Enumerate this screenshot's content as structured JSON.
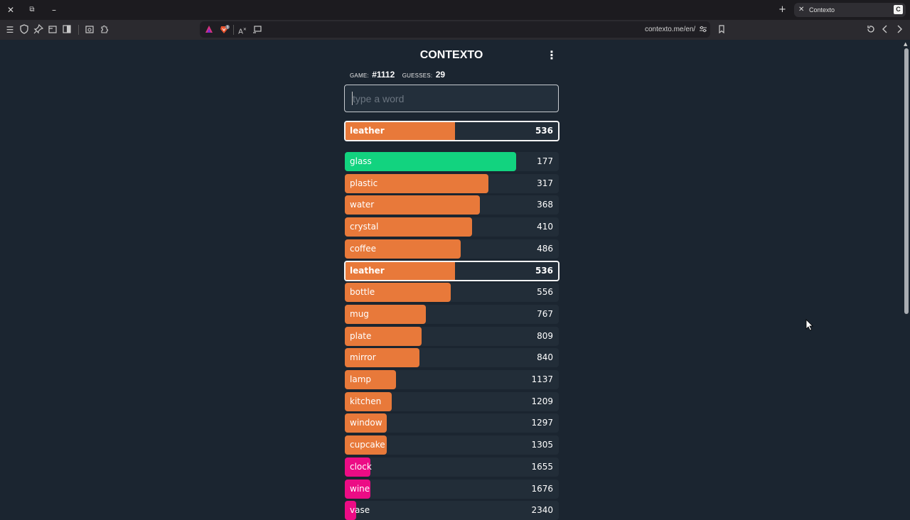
{
  "browser": {
    "tab_title": "Contexto",
    "tab_favicon_letter": "C",
    "url": "contexto.me/en/",
    "shields_badge": "3",
    "icons": {
      "close": "close-icon",
      "restore": "restore-icon",
      "minimize": "minimize-icon",
      "new_tab": "plus-icon",
      "menu": "hamburger-icon",
      "shield": "shield-icon",
      "pin": "pin-icon",
      "tabs": "tabs-icon",
      "sidebar": "sidebar-icon",
      "screenshot": "screenshot-icon",
      "extensions": "puzzle-icon",
      "rewards": "triangle-icon",
      "brave_shields": "lion-icon",
      "translate": "translate-icon",
      "cast": "cast-icon",
      "site_settings": "sliders-icon",
      "bookmark": "bookmark-icon",
      "reload": "reload-icon",
      "back": "chevron-left-icon",
      "forward": "chevron-right-icon"
    }
  },
  "game": {
    "title": "CONTEXTO",
    "game_label": "GAME:",
    "game_number": "#1112",
    "guesses_label": "GUESSES:",
    "guesses_count": "29",
    "input_placeholder": "type a word",
    "input_value": "",
    "last_guess": {
      "word": "leather",
      "distance": "536",
      "fill": 0.51,
      "color": "#e8793a"
    },
    "colors": {
      "green": "#12d37f",
      "orange": "#e8793a",
      "pink": "#ec0c85"
    },
    "guesses": [
      {
        "word": "glass",
        "distance": "177",
        "fill": 0.8,
        "color": "#12d37f"
      },
      {
        "word": "plastic",
        "distance": "317",
        "fill": 0.67,
        "color": "#e8793a"
      },
      {
        "word": "water",
        "distance": "368",
        "fill": 0.63,
        "color": "#e8793a"
      },
      {
        "word": "crystal",
        "distance": "410",
        "fill": 0.595,
        "color": "#e8793a"
      },
      {
        "word": "coffee",
        "distance": "486",
        "fill": 0.54,
        "color": "#e8793a"
      },
      {
        "word": "leather",
        "distance": "536",
        "fill": 0.51,
        "color": "#e8793a",
        "highlighted": true
      },
      {
        "word": "bottle",
        "distance": "556",
        "fill": 0.495,
        "color": "#e8793a"
      },
      {
        "word": "mug",
        "distance": "767",
        "fill": 0.38,
        "color": "#e8793a"
      },
      {
        "word": "plate",
        "distance": "809",
        "fill": 0.36,
        "color": "#e8793a"
      },
      {
        "word": "mirror",
        "distance": "840",
        "fill": 0.35,
        "color": "#e8793a"
      },
      {
        "word": "lamp",
        "distance": "1137",
        "fill": 0.24,
        "color": "#e8793a"
      },
      {
        "word": "kitchen",
        "distance": "1209",
        "fill": 0.22,
        "color": "#e8793a"
      },
      {
        "word": "window",
        "distance": "1297",
        "fill": 0.195,
        "color": "#e8793a"
      },
      {
        "word": "cupcake",
        "distance": "1305",
        "fill": 0.195,
        "color": "#e8793a"
      },
      {
        "word": "clock",
        "distance": "1655",
        "fill": 0.12,
        "color": "#ec0c85"
      },
      {
        "word": "wine",
        "distance": "1676",
        "fill": 0.12,
        "color": "#ec0c85"
      },
      {
        "word": "vase",
        "distance": "2340",
        "fill": 0.053,
        "color": "#ec0c85"
      }
    ]
  }
}
